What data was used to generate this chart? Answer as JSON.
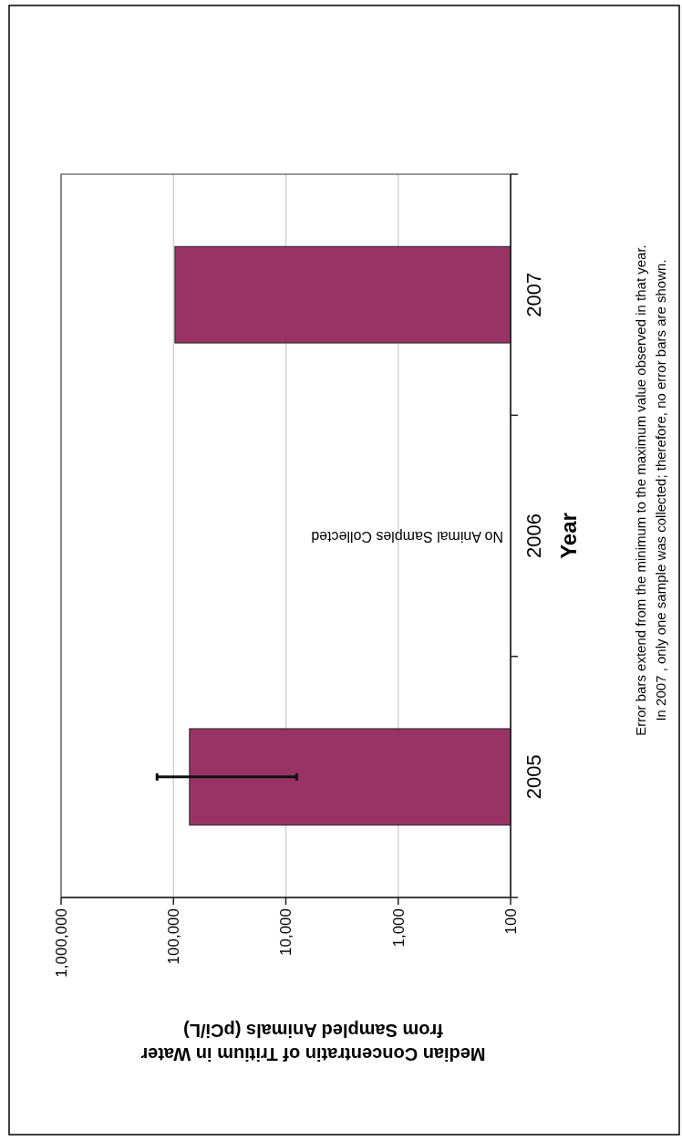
{
  "chart_data": {
    "type": "bar",
    "orientation": "horizontal",
    "xlabel": "Median Concentratin of Tritium in Water\nfrom Sampled Animals (pCi/L)",
    "ylabel": "Year",
    "categories": [
      "2007",
      "2006",
      "2005"
    ],
    "values": [
      97000,
      null,
      72000
    ],
    "errors": [
      null,
      null,
      [
        8000,
        140000
      ]
    ],
    "color": "#993366",
    "log": "x",
    "xlim": [
      1000000,
      100
    ],
    "xticks": [
      {
        "value": 1000000,
        "label": "1,000,000"
      },
      {
        "value": 100000,
        "label": "100,000"
      },
      {
        "value": 10000,
        "label": "10,000"
      },
      {
        "value": 1000,
        "label": "1,000"
      },
      {
        "value": 100,
        "label": "100"
      }
    ],
    "grid": "x",
    "annotations": [
      "No Animal Samples Collected",
      "Error bars extend from the minimum to the maximum value observed in that year.",
      "In 2007 , only one sample was collected; therefore, no error bars are shown."
    ]
  }
}
